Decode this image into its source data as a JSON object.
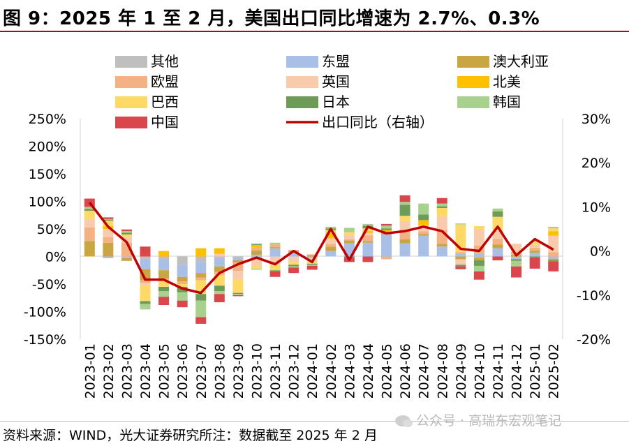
{
  "title": "图 9：2025 年 1 至 2 月，美国出口同比增速为 2.7%、0.3%",
  "source": "资料来源：WIND，光大证券研究所注：数据截至 2025 年 2 月",
  "watermark": "公众号 · 高瑞东宏观笔记",
  "chart_data": {
    "type": "bar",
    "stacked": true,
    "title": "图 9：2025 年 1 至 2 月，美国出口同比增速为 2.7%、0.3%",
    "legend_position": "top",
    "grid": false,
    "categories": [
      "2023-01",
      "2023-02",
      "2023-03",
      "2023-04",
      "2023-05",
      "2023-06",
      "2023-07",
      "2023-08",
      "2023-09",
      "2023-10",
      "2023-11",
      "2023-12",
      "2024-01",
      "2024-02",
      "2024-03",
      "2024-04",
      "2024-05",
      "2024-06",
      "2024-07",
      "2024-08",
      "2024-09",
      "2024-10",
      "2024-11",
      "2024-12",
      "2025-01",
      "2025-02"
    ],
    "y_left": {
      "range": [
        -150,
        250
      ],
      "ticks": [
        "-150%",
        "-100%",
        "-50%",
        "0%",
        "50%",
        "100%",
        "150%",
        "200%",
        "250%"
      ],
      "tick_values": [
        -150,
        -100,
        -50,
        0,
        50,
        100,
        150,
        200,
        250
      ]
    },
    "y_right": {
      "range": [
        -20,
        30
      ],
      "ticks": [
        "-20%",
        "-10%",
        "0%",
        "10%",
        "20%",
        "30%"
      ],
      "tick_values": [
        -20,
        -10,
        0,
        10,
        20,
        30
      ]
    },
    "series": [
      {
        "name": "其他",
        "color": "#bfbfbf",
        "values": [
          0,
          0,
          0,
          -5,
          -5,
          -15,
          -10,
          -3,
          -2,
          -2,
          0,
          0,
          0,
          0,
          0,
          0,
          0,
          0,
          0,
          0,
          0,
          -2,
          0,
          -2,
          0,
          0
        ]
      },
      {
        "name": "东盟",
        "color": "#a9bfe6",
        "values": [
          0,
          -3,
          -3,
          -18,
          -20,
          -22,
          -20,
          -15,
          -5,
          3,
          15,
          8,
          -3,
          10,
          24,
          25,
          40,
          24,
          38,
          18,
          5,
          5,
          15,
          -3,
          7,
          -4
        ]
      },
      {
        "name": "澳大利亚",
        "color": "#c9a642",
        "values": [
          28,
          25,
          -5,
          -20,
          -15,
          -8,
          -8,
          -10,
          -4,
          8,
          2,
          2,
          2,
          8,
          5,
          3,
          3,
          7,
          3,
          5,
          -5,
          -5,
          7,
          3,
          4,
          -3
        ]
      },
      {
        "name": "欧盟",
        "color": "#f4b183",
        "values": [
          25,
          10,
          25,
          -5,
          -5,
          -5,
          -5,
          -5,
          -15,
          5,
          5,
          2,
          2,
          5,
          2,
          10,
          -5,
          18,
          5,
          25,
          3,
          15,
          10,
          5,
          5,
          8
        ]
      },
      {
        "name": "英国",
        "color": "#f8cbad",
        "values": [
          15,
          15,
          10,
          -5,
          0,
          0,
          0,
          5,
          -15,
          -15,
          -15,
          -10,
          -5,
          10,
          8,
          5,
          0,
          15,
          10,
          25,
          -10,
          30,
          15,
          15,
          5,
          30
        ]
      },
      {
        "name": "北美",
        "color": "#ffc000",
        "values": [
          0,
          5,
          0,
          0,
          10,
          0,
          15,
          10,
          0,
          5,
          0,
          0,
          0,
          10,
          0,
          3,
          5,
          0,
          10,
          0,
          0,
          0,
          0,
          0,
          0,
          8
        ]
      },
      {
        "name": "巴西",
        "color": "#ffd966",
        "values": [
          15,
          10,
          5,
          -28,
          -10,
          -5,
          -25,
          -20,
          -25,
          -5,
          -10,
          -5,
          -5,
          5,
          5,
          5,
          0,
          10,
          0,
          15,
          50,
          5,
          25,
          0,
          5,
          5
        ]
      },
      {
        "name": "日本",
        "color": "#6e9b55",
        "values": [
          3,
          2,
          3,
          -5,
          -8,
          -10,
          -12,
          -10,
          -2,
          2,
          -2,
          -3,
          -2,
          3,
          -2,
          5,
          3,
          20,
          10,
          3,
          -3,
          -10,
          10,
          -3,
          -2,
          -2
        ]
      },
      {
        "name": "韩国",
        "color": "#a9d18e",
        "values": [
          4,
          1,
          3,
          -10,
          -10,
          -15,
          -30,
          -5,
          -2,
          -2,
          3,
          -2,
          -2,
          3,
          8,
          3,
          5,
          5,
          20,
          5,
          2,
          -10,
          5,
          -10,
          2,
          3
        ]
      },
      {
        "name": "中国",
        "color": "#d9474c",
        "values": [
          15,
          3,
          3,
          18,
          -15,
          -12,
          -12,
          -15,
          -2,
          0,
          -10,
          -10,
          -7,
          0,
          -8,
          -10,
          3,
          12,
          0,
          10,
          -5,
          -15,
          -7,
          -20,
          -20,
          -18
        ]
      }
    ],
    "line": {
      "name": "出口同比（右轴）",
      "color": "#c00000",
      "axis": "right",
      "values": [
        11,
        5.5,
        2,
        -6.5,
        -6.5,
        -8.5,
        -9.5,
        -5,
        -3,
        -1.5,
        -3,
        0,
        -2.5,
        5,
        -2,
        5.5,
        4,
        4.5,
        5.5,
        4.5,
        0.5,
        0,
        5.5,
        -1,
        2.7,
        0.3
      ]
    }
  }
}
